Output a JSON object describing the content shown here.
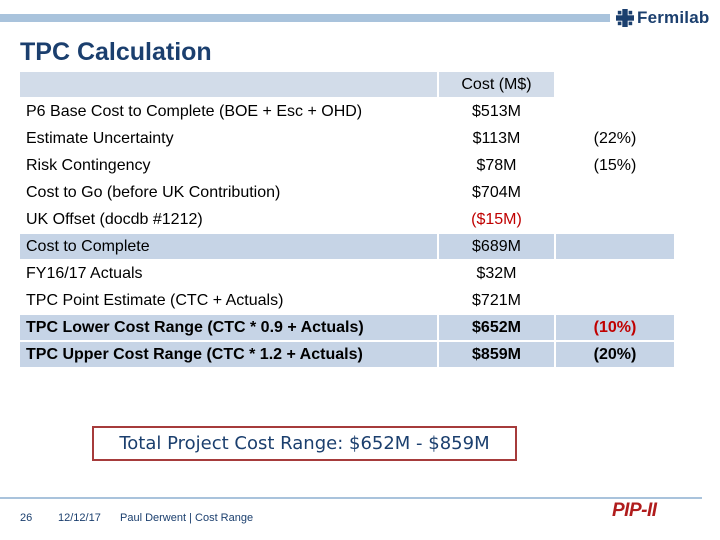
{
  "brand": {
    "logo_text": "Fermilab",
    "logo_icon": "fermilab-logo-icon",
    "color": "#1b3f6e"
  },
  "slide": {
    "title": "TPC Calculation"
  },
  "table": {
    "header": {
      "col2": "Cost (M$)"
    },
    "rows": [
      {
        "label": "P6 Base Cost to Complete (BOE + Esc + OHD)",
        "cost": "$513M",
        "pct": ""
      },
      {
        "label": "Estimate Uncertainty",
        "cost": "$113M",
        "pct": "(22%)"
      },
      {
        "label": "Risk Contingency",
        "cost": "$78M",
        "pct": "(15%)"
      },
      {
        "label": "Cost to Go (before UK Contribution)",
        "cost": "$704M",
        "pct": ""
      },
      {
        "label": "UK Offset (docdb #1212)",
        "cost": "($15M)",
        "pct": ""
      },
      {
        "label": "Cost to Complete",
        "cost": "$689M",
        "pct": ""
      },
      {
        "label": "FY16/17 Actuals",
        "cost": "$32M",
        "pct": ""
      },
      {
        "label": "TPC Point Estimate (CTC + Actuals)",
        "cost": "$721M",
        "pct": ""
      },
      {
        "label": "TPC Lower Cost Range (CTC * 0.9 + Actuals)",
        "cost": "$652M",
        "pct": "(10%)"
      },
      {
        "label": "TPC Upper Cost Range (CTC * 1.2 + Actuals)",
        "cost": "$859M",
        "pct": "(20%)"
      }
    ]
  },
  "summary": {
    "text": "Total Project Cost Range:  $652M - $859M"
  },
  "footer": {
    "page": "26",
    "date": "12/12/17",
    "author": "Paul Derwent | Cost Range",
    "pip_logo": "PIP-II"
  },
  "colors": {
    "header_band": "#d2dce9",
    "row_blue": "#c6d4e6",
    "accent_red": "#c00000",
    "box_border": "#a63b3b"
  }
}
